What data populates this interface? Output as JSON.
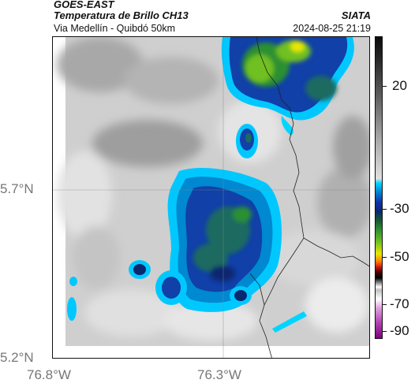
{
  "header": {
    "product": "GOES-EAST",
    "title": "Temperatura de Brillo CH13",
    "route": "Via Medellín - Quibdó 50km",
    "organization": "SIATA",
    "timestamp": "2024-08-25 21:19"
  },
  "axes": {
    "lat_labels": [
      "5.7°N",
      "5.2°N"
    ],
    "lon_labels": [
      "76.8°W",
      "76.3°W"
    ]
  },
  "colorbar": {
    "labels": [
      "20",
      "-30",
      "-50",
      "-70",
      "-90"
    ]
  },
  "colors": {
    "cloud_top_coldest": "#0a2870",
    "cloud_top_cold": "#1030a8",
    "cloud_edge": "#00d4ff",
    "convective_core": "#e8e800",
    "warm_background": "#cfcfcf"
  }
}
